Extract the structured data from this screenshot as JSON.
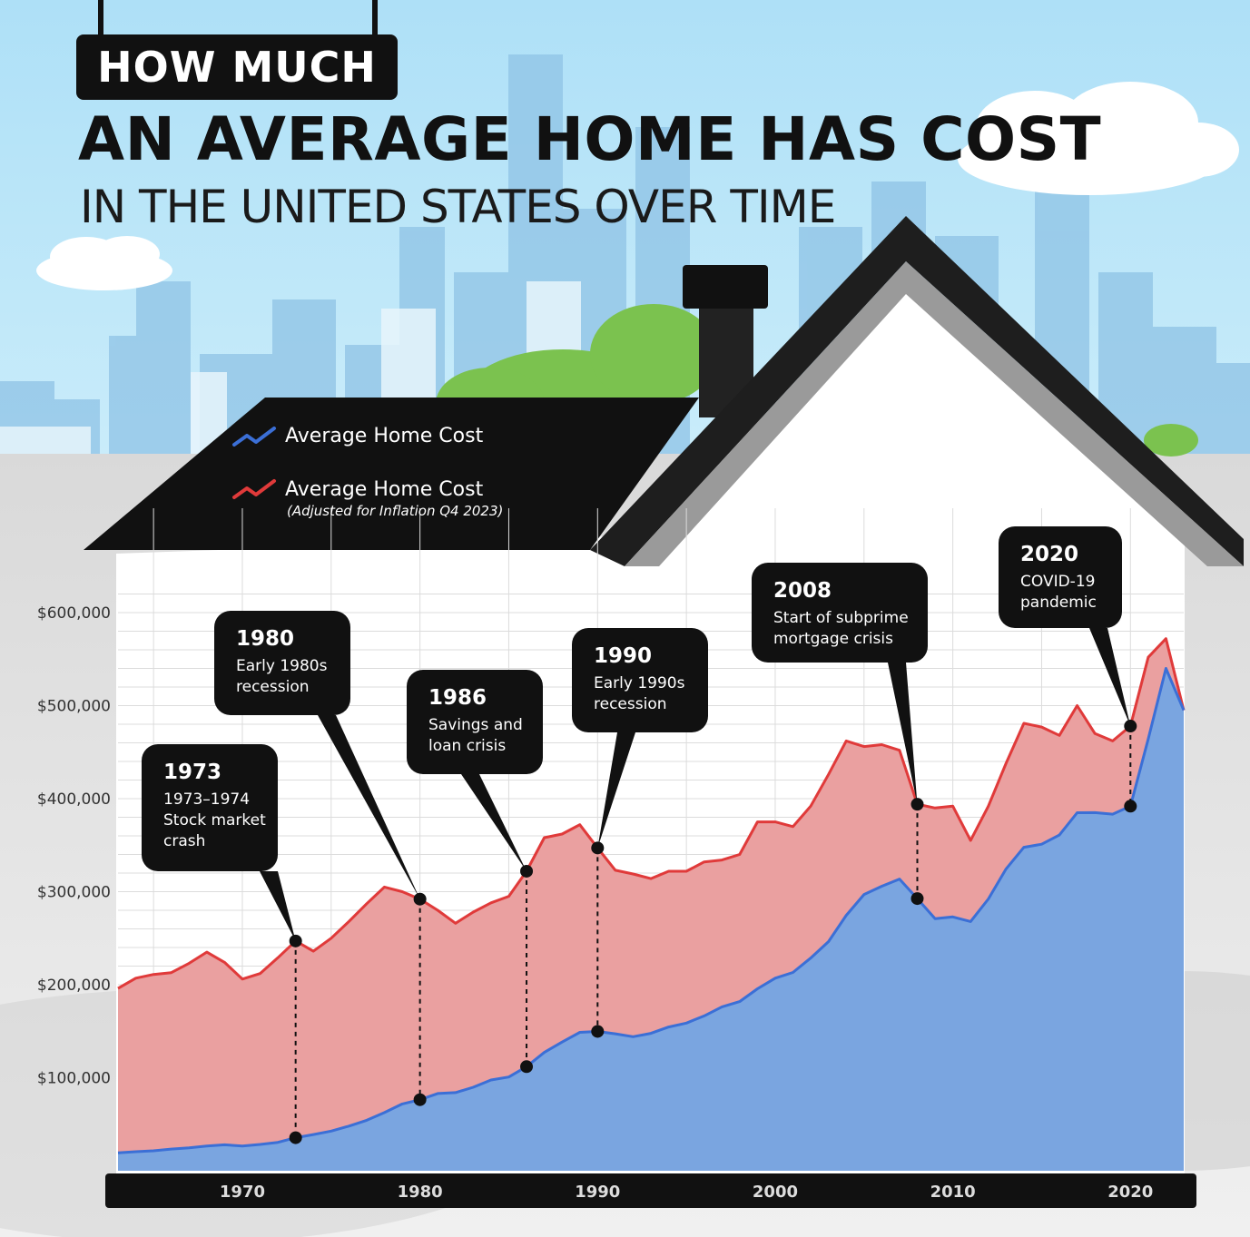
{
  "header": {
    "badge": "HOW MUCH",
    "title": "AN AVERAGE HOME HAS COST",
    "subtitle": "IN THE UNITED STATES OVER TIME"
  },
  "legend": {
    "nominal_label": "Average Home Cost",
    "adjusted_label": "Average Home Cost",
    "adjusted_note": "(Adjusted for Inflation Q4 2023)"
  },
  "colors": {
    "nominal": "#3b6fd6",
    "adjusted": "#e03a3a",
    "nominal_fill": "#7aa5e0",
    "adjusted_fill": "#eaa0a0"
  },
  "chart_data": {
    "type": "area",
    "title": "AN AVERAGE HOME HAS COST",
    "xlim": [
      1963,
      2023
    ],
    "ylim": [
      0,
      600000
    ],
    "y_ticks": [
      "$100,000",
      "$200,000",
      "$300,000",
      "$400,000",
      "$500,000",
      "$600,000"
    ],
    "y_tick_values": [
      100000,
      200000,
      300000,
      400000,
      500000,
      600000
    ],
    "x_ticks": [
      "1970",
      "1980",
      "1990",
      "2000",
      "2010",
      "2020"
    ],
    "x_tick_values": [
      1970,
      1980,
      1990,
      2000,
      2010,
      2020
    ],
    "series": [
      {
        "name": "Average Home Cost (Adjusted for Inflation Q4 2023)",
        "x": [
          1963,
          1964,
          1965,
          1966,
          1967,
          1968,
          1969,
          1970,
          1971,
          1972,
          1973,
          1974,
          1975,
          1976,
          1977,
          1978,
          1979,
          1980,
          1981,
          1982,
          1983,
          1984,
          1985,
          1986,
          1987,
          1988,
          1989,
          1990,
          1991,
          1992,
          1993,
          1994,
          1995,
          1996,
          1997,
          1998,
          1999,
          2000,
          2001,
          2002,
          2003,
          2004,
          2005,
          2006,
          2007,
          2008,
          2009,
          2010,
          2011,
          2012,
          2013,
          2014,
          2015,
          2016,
          2017,
          2018,
          2019,
          2020,
          2021,
          2022,
          2023
        ],
        "values": [
          196000,
          207000,
          211000,
          213000,
          223000,
          235000,
          224000,
          206000,
          212000,
          229000,
          247000,
          236000,
          250000,
          268000,
          287000,
          305000,
          300000,
          292000,
          280000,
          266000,
          278000,
          288000,
          295000,
          322000,
          358000,
          362000,
          372000,
          347000,
          323000,
          319000,
          314000,
          322000,
          322000,
          332000,
          334000,
          340000,
          375000,
          375000,
          370000,
          392000,
          426000,
          462000,
          456000,
          458000,
          452000,
          394000,
          390000,
          392000,
          355000,
          392000,
          438000,
          481000,
          477000,
          468000,
          500000,
          470000,
          462000,
          478000,
          552000,
          572000,
          495000
        ]
      },
      {
        "name": "Average Home Cost",
        "x": [
          1963,
          1964,
          1965,
          1966,
          1967,
          1968,
          1969,
          1970,
          1971,
          1972,
          1973,
          1974,
          1975,
          1976,
          1977,
          1978,
          1979,
          1980,
          1981,
          1982,
          1983,
          1984,
          1985,
          1986,
          1987,
          1988,
          1989,
          1990,
          1991,
          1992,
          1993,
          1994,
          1995,
          1996,
          1997,
          1998,
          1999,
          2000,
          2001,
          2002,
          2003,
          2004,
          2005,
          2006,
          2007,
          2008,
          2009,
          2010,
          2011,
          2012,
          2013,
          2014,
          2015,
          2016,
          2017,
          2018,
          2019,
          2020,
          2021,
          2022,
          2023
        ],
        "values": [
          19300,
          20500,
          21500,
          23300,
          24600,
          26600,
          27900,
          26600,
          28300,
          30500,
          35500,
          38900,
          42600,
          48000,
          54200,
          62500,
          71800,
          76400,
          83000,
          84000,
          89800,
          97600,
          100800,
          111900,
          127200,
          138300,
          148800,
          149800,
          147200,
          144100,
          147700,
          154500,
          158700,
          166400,
          176200,
          181900,
          195600,
          207000,
          213200,
          228700,
          246300,
          274500,
          297000,
          305900,
          313600,
          292600,
          270900,
          272900,
          267900,
          292200,
          324500,
          347700,
          351000,
          360900,
          384900,
          385000,
          383300,
          391900,
          464200,
          540000,
          495000
        ]
      }
    ],
    "annotations": [
      {
        "year": "1973",
        "text": [
          "1973–1974",
          "Stock market",
          "crash"
        ],
        "x": 1973,
        "y_adjusted": 247000,
        "y_nominal": 35500
      },
      {
        "year": "1980",
        "text": [
          "Early 1980s",
          "recession"
        ],
        "x": 1980,
        "y_adjusted": 292000,
        "y_nominal": 76400
      },
      {
        "year": "1986",
        "text": [
          "Savings and",
          "loan crisis"
        ],
        "x": 1986,
        "y_adjusted": 322000,
        "y_nominal": 111900
      },
      {
        "year": "1990",
        "text": [
          "Early 1990s",
          "recession"
        ],
        "x": 1990,
        "y_adjusted": 347000,
        "y_nominal": 149800
      },
      {
        "year": "2008",
        "text": [
          "Start of subprime",
          "mortgage crisis"
        ],
        "x": 2008,
        "y_adjusted": 394000,
        "y_nominal": 292600
      },
      {
        "year": "2020",
        "text": [
          "COVID-19",
          "pandemic"
        ],
        "x": 2020,
        "y_adjusted": 478000,
        "y_nominal": 391900
      }
    ]
  }
}
